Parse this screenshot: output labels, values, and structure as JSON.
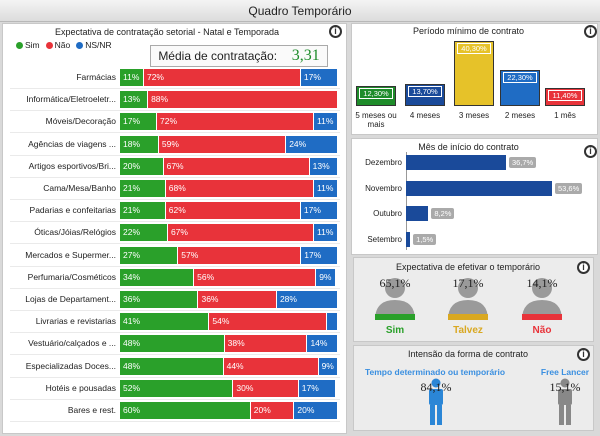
{
  "window_title": "Quadro Temporário",
  "left_panel": {
    "title": "Expectativa de contratação setorial - Natal e Temporada",
    "legend": [
      {
        "label": "Sim",
        "color": "#2aa02a"
      },
      {
        "label": "Não",
        "color": "#e8333a"
      },
      {
        "label": "NS/NR",
        "color": "#1f6cc4"
      }
    ],
    "average_label": "Média de contratação:",
    "average_value": "3,31"
  },
  "period_panel": {
    "title": "Período mínimo de contrato"
  },
  "start_panel": {
    "title": "Mês de início do contrato"
  },
  "expect_panel": {
    "title": "Expectativa de efetivar o temporário",
    "people": [
      {
        "pct": "65,1%",
        "label": "Sim",
        "color": "#2aa02a"
      },
      {
        "pct": "17,1%",
        "label": "Talvez",
        "color": "#d9a821"
      },
      {
        "pct": "14,1%",
        "label": "Não",
        "color": "#e8333a"
      }
    ]
  },
  "intent_panel": {
    "title": "Intensão da forma de contrato",
    "options": [
      {
        "label": "Tempo determinado ou temporário",
        "pct": "84,1%"
      },
      {
        "label": "Free Lancer",
        "pct": "15,1%"
      }
    ]
  },
  "chart_data": [
    {
      "type": "bar",
      "orientation": "horizontal-stacked",
      "title": "Expectativa de contratação setorial - Natal e Temporada",
      "categories": [
        "Farmácias",
        "Informática/Eletroeletr...",
        "Móveis/Decoração",
        "Agências de viagens ...",
        "Artigos esportivos/Bri...",
        "Cama/Mesa/Banho",
        "Padarias e confeitarias",
        "Óticas/Jóias/Relógios",
        "Mercados e Supermer...",
        "Perfumaria/Cosméticos",
        "Lojas de Departament...",
        "Livrarias e revistarias",
        "Vestuário/calçados e ...",
        "Especializadas Doces...",
        "Hotéis e pousadas",
        "Bares e rest."
      ],
      "series": [
        {
          "name": "Sim",
          "values": [
            11,
            13,
            17,
            18,
            20,
            21,
            21,
            22,
            27,
            34,
            36,
            41,
            48,
            48,
            52,
            60
          ],
          "labels": [
            "11%",
            "13%",
            "17%",
            "18%",
            "20%",
            "21%",
            "21%",
            "22%",
            "27%",
            "34%",
            "36%",
            "41%",
            "48%",
            "48%",
            "52%",
            "60%"
          ]
        },
        {
          "name": "Não",
          "values": [
            72,
            88,
            72,
            59,
            67,
            68,
            62,
            67,
            57,
            56,
            36,
            54,
            38,
            44,
            30,
            20
          ],
          "labels": [
            "72%",
            "88%",
            "72%",
            "59%",
            "67%",
            "68%",
            "62%",
            "67%",
            "57%",
            "56%",
            "36%",
            "54%",
            "38%",
            "44%",
            "30%",
            "20%"
          ]
        },
        {
          "name": "NS/NR",
          "values": [
            17,
            0,
            11,
            24,
            13,
            11,
            17,
            11,
            17,
            9,
            28,
            5,
            14,
            9,
            17,
            20
          ],
          "labels": [
            "17%",
            "",
            "11%",
            "24%",
            "13%",
            "11%",
            "17%",
            "11%",
            "17%",
            "9%",
            "28%",
            "",
            "14%",
            "9%",
            "17%",
            "20%"
          ]
        }
      ]
    },
    {
      "type": "bar",
      "title": "Período mínimo de contrato",
      "categories": [
        "5 meses ou mais",
        "4 meses",
        "3 meses",
        "2 meses",
        "1 mês"
      ],
      "values": [
        12.3,
        13.7,
        40.3,
        22.3,
        11.4
      ],
      "labels": [
        "12,30%",
        "13,70%",
        "40,30%",
        "22,30%",
        "11,40%"
      ],
      "colors": [
        "#1e8c2a",
        "#1a4a9a",
        "#e6c229",
        "#1f6cc4",
        "#e8333a"
      ]
    },
    {
      "type": "bar",
      "orientation": "horizontal",
      "title": "Mês de início do contrato",
      "categories": [
        "Dezembro",
        "Novembro",
        "Outubro",
        "Setembro"
      ],
      "values": [
        36.7,
        53.6,
        8.2,
        1.5
      ],
      "labels": [
        "36,7%",
        "53,6%",
        "8,2%",
        "1,5%"
      ]
    }
  ]
}
